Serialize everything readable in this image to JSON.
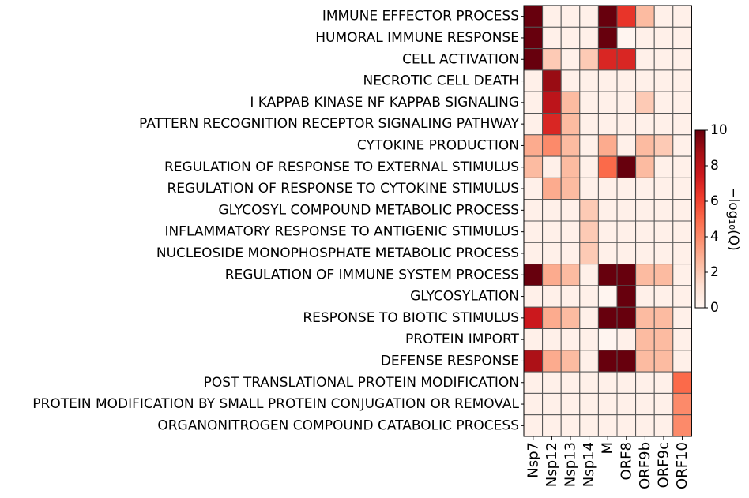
{
  "chart_data": {
    "type": "heatmap",
    "title": "",
    "rows": [
      "IMMUNE EFFECTOR PROCESS",
      "HUMORAL IMMUNE RESPONSE",
      "CELL ACTIVATION",
      "NECROTIC CELL DEATH",
      "I KAPPAB KINASE NF KAPPAB SIGNALING",
      "PATTERN RECOGNITION RECEPTOR SIGNALING PATHWAY",
      "CYTOKINE PRODUCTION",
      "REGULATION OF RESPONSE TO EXTERNAL STIMULUS",
      "REGULATION OF RESPONSE TO CYTOKINE STIMULUS",
      "GLYCOSYL COMPOUND METABOLIC PROCESS",
      "INFLAMMATORY RESPONSE TO ANTIGENIC STIMULUS",
      "NUCLEOSIDE MONOPHOSPHATE METABOLIC PROCESS",
      "REGULATION OF IMMUNE SYSTEM PROCESS",
      "GLYCOSYLATION",
      "RESPONSE TO BIOTIC STIMULUS",
      "PROTEIN IMPORT",
      "DEFENSE RESPONSE",
      "POST TRANSLATIONAL PROTEIN MODIFICATION",
      "PROTEIN MODIFICATION BY SMALL PROTEIN CONJUGATION OR REMOVAL",
      "ORGANONITROGEN COMPOUND CATABOLIC PROCESS"
    ],
    "columns": [
      "Nsp7",
      "Nsp12",
      "Nsp13",
      "Nsp14",
      "M",
      "ORF8",
      "ORF9b",
      "ORF9c",
      "ORF10"
    ],
    "values": [
      [
        10,
        0.3,
        0.3,
        0.3,
        10,
        6.5,
        2.5,
        0.3,
        0.3
      ],
      [
        10,
        0.3,
        0.3,
        0.3,
        10,
        0.0,
        0.3,
        0.3,
        0.3
      ],
      [
        10,
        2.0,
        0.3,
        2.0,
        7.0,
        7.0,
        0.3,
        0.3,
        0.3
      ],
      [
        0.3,
        9.0,
        0.3,
        0.3,
        0.3,
        0.3,
        0.3,
        0.3,
        0.3
      ],
      [
        0.3,
        8.0,
        2.5,
        0.3,
        0.3,
        0.3,
        2.0,
        0.3,
        0.3
      ],
      [
        0.3,
        7.0,
        2.5,
        0.3,
        0.3,
        0.3,
        0.3,
        0.3,
        0.3
      ],
      [
        3.0,
        4.0,
        2.5,
        0.3,
        3.0,
        0.3,
        2.5,
        2.0,
        0.3
      ],
      [
        2.5,
        0.3,
        2.5,
        0.3,
        5.0,
        10,
        2.5,
        0.3,
        0.3
      ],
      [
        0.3,
        3.0,
        2.5,
        0.3,
        0.3,
        0.3,
        0.3,
        0.3,
        0.3
      ],
      [
        0.3,
        0.3,
        0.3,
        2.0,
        0.3,
        0.3,
        0.3,
        0.3,
        0.3
      ],
      [
        0.3,
        0.3,
        0.3,
        2.0,
        0.3,
        0.3,
        0.3,
        0.3,
        0.3
      ],
      [
        0.3,
        0.3,
        0.3,
        2.0,
        0.3,
        0.3,
        0.3,
        0.3,
        0.3
      ],
      [
        10,
        3.0,
        2.5,
        0.3,
        10,
        10,
        2.5,
        2.5,
        0.3
      ],
      [
        0.3,
        0.3,
        0.3,
        0.3,
        0.0,
        10,
        0.3,
        0.3,
        0.3
      ],
      [
        7.5,
        3.0,
        2.5,
        0.3,
        10,
        10,
        2.5,
        2.5,
        0.3
      ],
      [
        0.3,
        0.3,
        0.3,
        0.3,
        0.0,
        0.3,
        2.5,
        2.5,
        0.3
      ],
      [
        8.5,
        3.0,
        2.5,
        0.3,
        10,
        10,
        2.5,
        2.5,
        0.3
      ],
      [
        0.3,
        0.3,
        0.3,
        0.3,
        0.3,
        0.3,
        0.3,
        0.3,
        5.0
      ],
      [
        0.3,
        0.3,
        0.3,
        0.3,
        0.3,
        0.3,
        0.3,
        0.3,
        4.0
      ],
      [
        0.3,
        0.3,
        0.3,
        0.3,
        0.3,
        0.3,
        0.3,
        0.3,
        4.0
      ]
    ],
    "colorbar": {
      "label": "−log₁₀(Q)",
      "range": [
        0,
        10
      ],
      "ticks": [
        0,
        2,
        4,
        6,
        8,
        10
      ],
      "colormap": "Reds",
      "placement": "right"
    },
    "grid": true,
    "colors": {
      "low": "#fff5f0",
      "high": "#67000d",
      "cell_border": "#555555"
    }
  }
}
